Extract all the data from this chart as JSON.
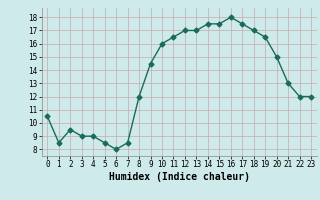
{
  "x": [
    0,
    1,
    2,
    3,
    4,
    5,
    6,
    7,
    8,
    9,
    10,
    11,
    12,
    13,
    14,
    15,
    16,
    17,
    18,
    19,
    20,
    21,
    22,
    23
  ],
  "y": [
    10.5,
    8.5,
    9.5,
    9.0,
    9.0,
    8.5,
    8.0,
    8.5,
    12.0,
    14.5,
    16.0,
    16.5,
    17.0,
    17.0,
    17.5,
    17.5,
    18.0,
    17.5,
    17.0,
    16.5,
    15.0,
    13.0,
    12.0,
    12.0
  ],
  "xlabel": "Humidex (Indice chaleur)",
  "ylim": [
    7.5,
    18.7
  ],
  "xlim": [
    -0.5,
    23.5
  ],
  "yticks": [
    8,
    9,
    10,
    11,
    12,
    13,
    14,
    15,
    16,
    17,
    18
  ],
  "xticks": [
    0,
    1,
    2,
    3,
    4,
    5,
    6,
    7,
    8,
    9,
    10,
    11,
    12,
    13,
    14,
    15,
    16,
    17,
    18,
    19,
    20,
    21,
    22,
    23
  ],
  "line_color": "#1a6b5a",
  "marker": "D",
  "marker_size": 2.5,
  "bg_color": "#ceeaea",
  "grid_color": "#c8a8a8",
  "tick_fontsize": 5.5,
  "xlabel_fontsize": 7.0
}
